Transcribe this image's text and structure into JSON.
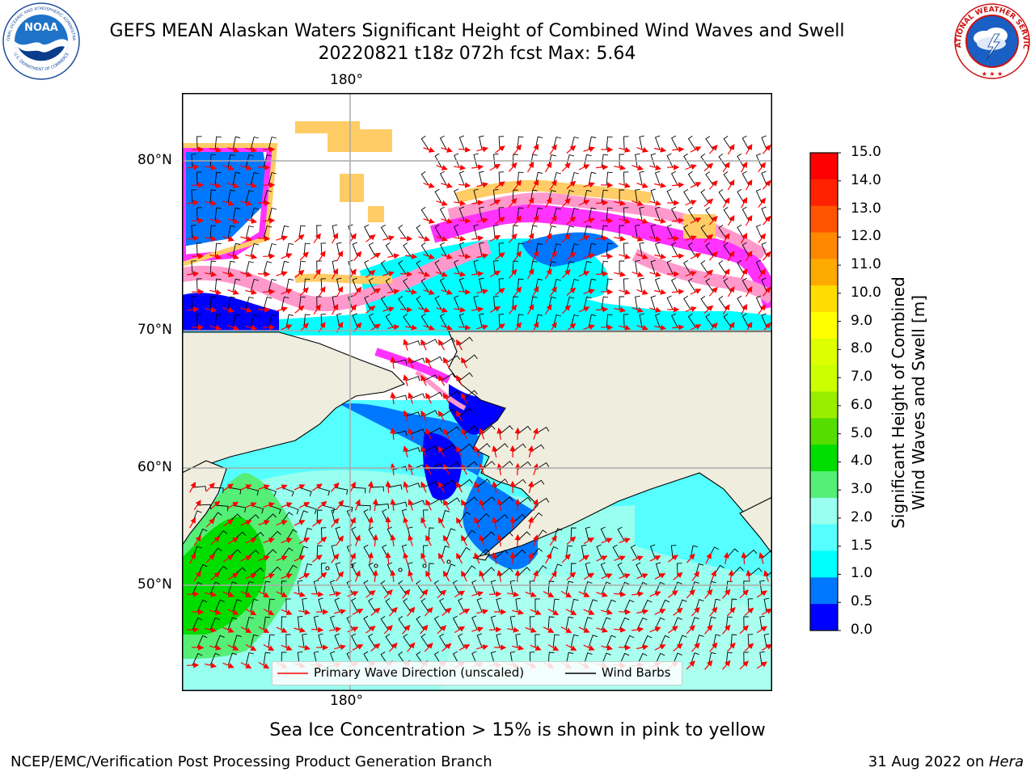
{
  "header": {
    "title_line1": "GEFS MEAN Alaskan Waters Significant Height of Combined Wind Waves and Swell",
    "title_line2": "20220821 t18z 072h fcst   Max: 5.64",
    "noaa_logo_text": "NOAA",
    "noaa_ring_top": "NATIONAL OCEANIC AND ATMOSPHERIC ADMINISTRATION",
    "noaa_ring_bottom": "U.S. DEPARTMENT OF COMMERCE",
    "nws_ring_text": "NATIONAL WEATHER SERVICE"
  },
  "map": {
    "lon_label_top": "180°",
    "lon_label_bottom": "180°",
    "lat_labels": [
      "80°N",
      "70°N",
      "60°N",
      "50°N"
    ],
    "legend": {
      "wave_label": "Primary Wave Direction (unscaled)",
      "wind_label": "Wind Barbs",
      "wave_color": "#ff0000",
      "wind_color": "#000000"
    },
    "land_color": "#efedde",
    "ice_colors": [
      "#ff33ff",
      "#ff99cc",
      "#ffcc66"
    ]
  },
  "colorbar": {
    "label_line1": "Significant Height of Combined",
    "label_line2": "Wind Waves and Swell [m]",
    "ticks": [
      "15.0",
      "14.0",
      "13.0",
      "12.0",
      "11.0",
      "10.0",
      "9.0",
      "8.0",
      "7.0",
      "6.0",
      "5.0",
      "4.0",
      "3.0",
      "2.0",
      "1.5",
      "1.0",
      "0.5",
      "0.0"
    ],
    "colors_top_to_bottom": [
      "#ff0000",
      "#ff2200",
      "#ff5500",
      "#ff8800",
      "#ffaa00",
      "#ffdd00",
      "#ffff00",
      "#ddff00",
      "#ccff00",
      "#99ee00",
      "#55dd00",
      "#00dd00",
      "#55ee77",
      "#99ffee",
      "#55ffff",
      "#00ffff",
      "#0077ff",
      "#0000ff"
    ]
  },
  "note": "Sea Ice Concentration > 15% is shown in pink to yellow",
  "footer": {
    "left": "NCEP/EMC/Verification Post Processing Product Generation Branch",
    "date": "31 Aug 2022 on ",
    "machine": "Hera"
  }
}
